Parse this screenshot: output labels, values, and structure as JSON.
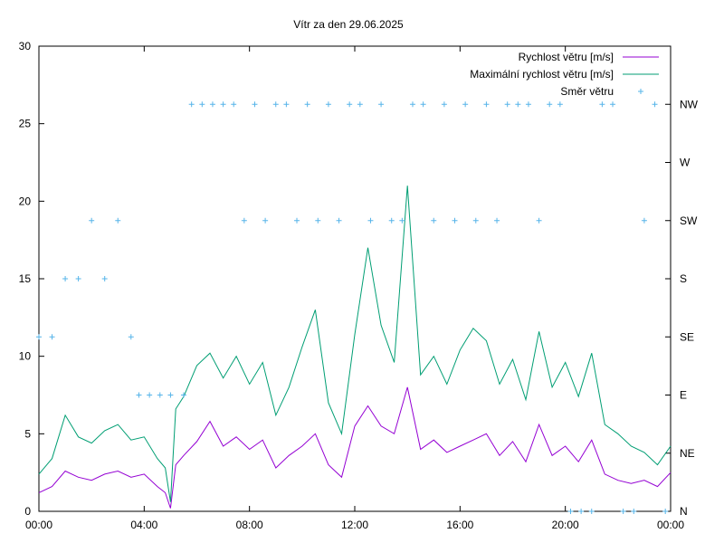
{
  "chart_data": {
    "type": "line",
    "title": "Vítr za den 29.06.2025",
    "xlabel": "",
    "ylabel": "",
    "x_ticks": [
      "00:00",
      "04:00",
      "08:00",
      "12:00",
      "16:00",
      "20:00",
      "00:00"
    ],
    "xlim_hours": [
      0,
      24
    ],
    "ylim": [
      0,
      30
    ],
    "y_ticks": [
      "0",
      "5",
      "10",
      "15",
      "20",
      "25",
      "30"
    ],
    "y2_ticks": [
      "N",
      "NE",
      "E",
      "SE",
      "S",
      "SW",
      "W",
      "NW"
    ],
    "y2_values": [
      0,
      3.75,
      7.5,
      11.25,
      15,
      18.75,
      22.5,
      26.25
    ],
    "grid": false,
    "legend_position": "top-right",
    "legend": [
      {
        "label": "Rychlost větru [m/s]",
        "color": "#9400d3",
        "style": "line"
      },
      {
        "label": "Maximální rychlost větru [m/s]",
        "color": "#009e73",
        "style": "line"
      },
      {
        "label": "Směr větru",
        "color": "#56b4e9",
        "style": "plus"
      }
    ],
    "series": [
      {
        "name": "Rychlost větru [m/s]",
        "color": "#9400d3",
        "x": [
          0,
          0.5,
          1,
          1.5,
          2,
          2.5,
          3,
          3.5,
          4,
          4.5,
          4.8,
          5,
          5.2,
          5.5,
          6,
          6.5,
          7,
          7.5,
          8,
          8.5,
          9,
          9.5,
          10,
          10.5,
          11,
          11.5,
          12,
          12.5,
          13,
          13.5,
          14,
          14.5,
          15,
          15.5,
          16,
          16.5,
          17,
          17.5,
          18,
          18.5,
          19,
          19.5,
          20,
          20.5,
          21,
          21.5,
          22,
          22.5,
          23,
          23.5,
          24
        ],
        "values": [
          1.2,
          1.6,
          2.6,
          2.2,
          2.0,
          2.4,
          2.6,
          2.2,
          2.4,
          1.6,
          1.2,
          0.2,
          3.0,
          3.6,
          4.5,
          5.8,
          4.2,
          4.8,
          4.0,
          4.6,
          2.8,
          3.6,
          4.2,
          5.0,
          3.0,
          2.2,
          5.5,
          6.8,
          5.5,
          5.0,
          8.0,
          4.0,
          4.6,
          3.8,
          4.2,
          4.6,
          5.0,
          3.6,
          4.5,
          3.2,
          5.6,
          3.6,
          4.2,
          3.2,
          4.6,
          2.4,
          2.0,
          1.8,
          2.0,
          1.6,
          2.5
        ]
      },
      {
        "name": "Maximální rychlost větru [m/s]",
        "color": "#009e73",
        "x": [
          0,
          0.5,
          1,
          1.5,
          2,
          2.5,
          3,
          3.5,
          4,
          4.5,
          4.8,
          5,
          5.2,
          5.5,
          6,
          6.5,
          7,
          7.5,
          8,
          8.5,
          9,
          9.5,
          10,
          10.5,
          11,
          11.5,
          12,
          12.5,
          13,
          13.5,
          14,
          14.5,
          15,
          15.5,
          16,
          16.5,
          17,
          17.5,
          18,
          18.5,
          19,
          19.5,
          20,
          20.5,
          21,
          21.5,
          22,
          22.5,
          23,
          23.5,
          24
        ],
        "values": [
          2.4,
          3.4,
          6.2,
          4.8,
          4.4,
          5.2,
          5.6,
          4.6,
          4.8,
          3.4,
          2.8,
          0.6,
          6.6,
          7.4,
          9.4,
          10.2,
          8.6,
          10.0,
          8.2,
          9.6,
          6.2,
          8.0,
          10.6,
          13.0,
          7.0,
          5.0,
          11.4,
          17.0,
          12.0,
          9.6,
          21.0,
          8.8,
          10.0,
          8.2,
          10.4,
          11.8,
          11.0,
          8.2,
          9.8,
          7.2,
          11.6,
          8.0,
          9.6,
          7.4,
          10.2,
          5.6,
          5.0,
          4.2,
          3.8,
          3.0,
          4.2
        ]
      },
      {
        "name": "Směr větru",
        "color": "#56b4e9",
        "type": "scatter",
        "x": [
          0,
          0.5,
          1,
          1.5,
          2,
          2.5,
          3,
          3.5,
          3.8,
          4.2,
          4.6,
          5,
          5.5,
          5.8,
          6.2,
          6.6,
          7,
          7.4,
          7.8,
          8.2,
          8.6,
          9,
          9.4,
          9.8,
          10.2,
          10.6,
          11,
          11.4,
          11.8,
          12.2,
          12.6,
          13,
          13.4,
          13.8,
          14.2,
          14.6,
          15,
          15.4,
          15.8,
          16.2,
          16.6,
          17,
          17.4,
          17.8,
          18.2,
          18.6,
          19,
          19.4,
          19.8,
          20.2,
          20.6,
          21,
          21.4,
          21.8,
          22.2,
          22.6,
          23,
          23.4,
          23.8
        ],
        "values": [
          11.25,
          11.25,
          15,
          15,
          18.75,
          15,
          18.75,
          11.25,
          7.5,
          7.5,
          7.5,
          7.5,
          7.5,
          26.25,
          26.25,
          26.25,
          26.25,
          26.25,
          18.75,
          26.25,
          18.75,
          26.25,
          26.25,
          18.75,
          26.25,
          18.75,
          26.25,
          18.75,
          26.25,
          26.25,
          18.75,
          26.25,
          18.75,
          18.75,
          26.25,
          26.25,
          18.75,
          26.25,
          18.75,
          26.25,
          18.75,
          26.25,
          18.75,
          26.25,
          26.25,
          26.25,
          18.75,
          26.25,
          26.25,
          0,
          0,
          0,
          26.25,
          26.25,
          0,
          0,
          18.75,
          26.25,
          0
        ]
      }
    ]
  }
}
